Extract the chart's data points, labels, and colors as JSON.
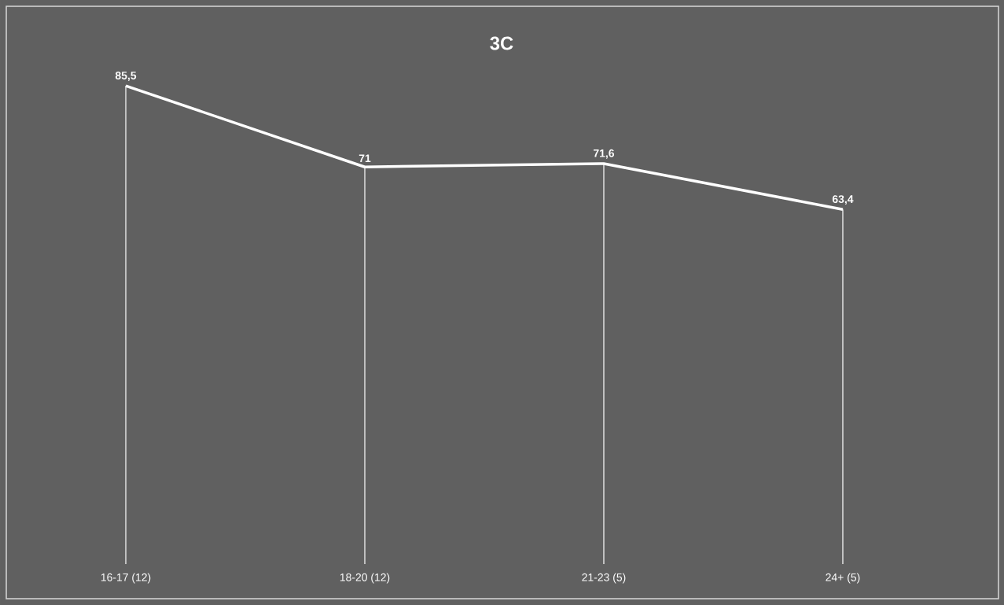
{
  "chart_data": {
    "type": "line",
    "title": "3C",
    "categories": [
      "16-17 (12)",
      "18-20 (12)",
      "21-23 (5)",
      "24+ (5)"
    ],
    "values": [
      85.5,
      71,
      71.6,
      63.4
    ],
    "value_labels": [
      "85,5",
      "71",
      "71,6",
      "63,4"
    ],
    "color": "#ffffff",
    "line_style": "solid",
    "grid": "x"
  }
}
